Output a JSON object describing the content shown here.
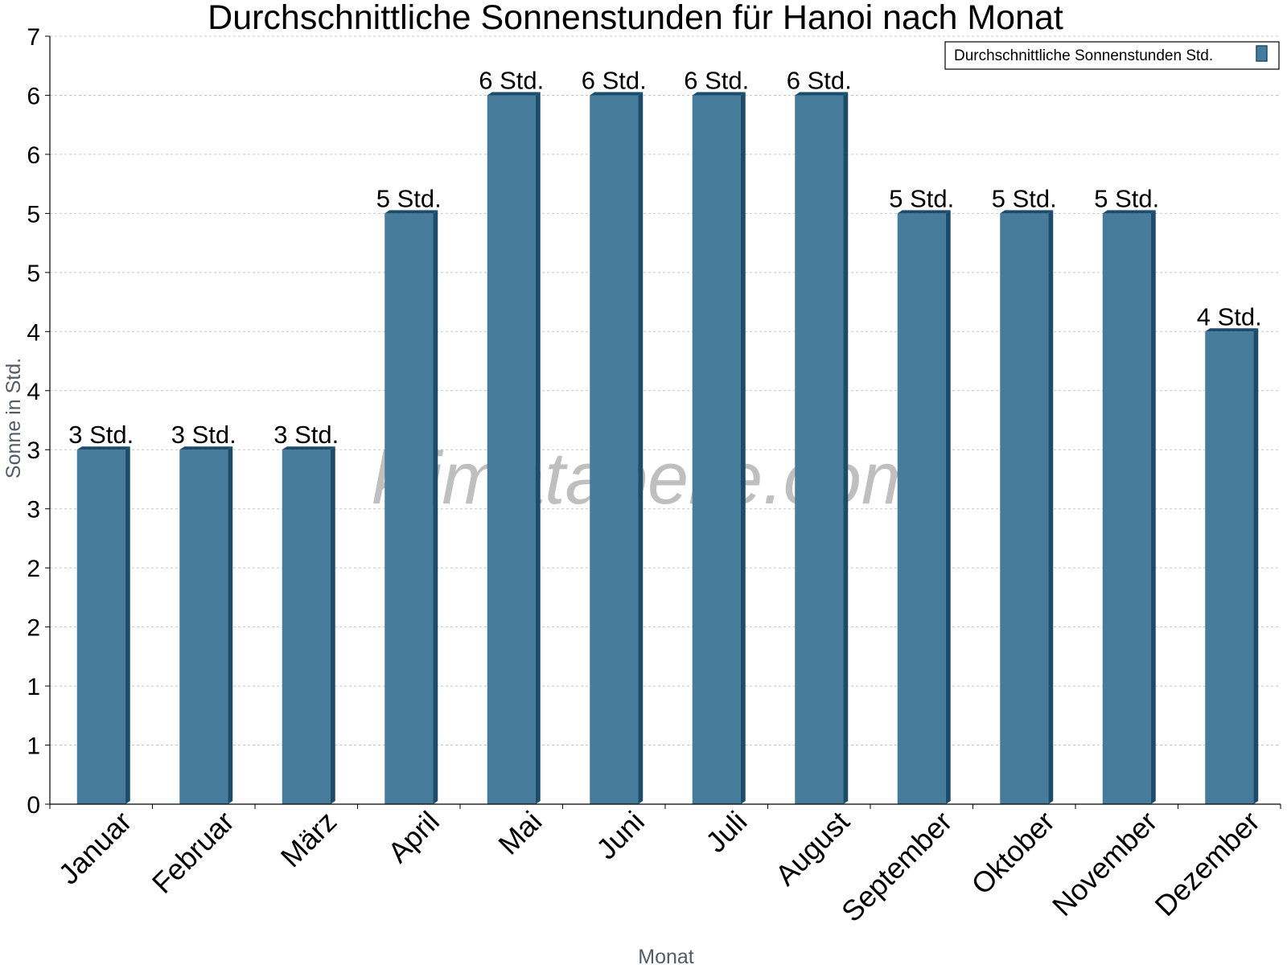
{
  "chart_data": {
    "type": "bar",
    "title": "Durchschnittliche Sonnenstunden für Hanoi nach Monat",
    "xlabel": "Monat",
    "ylabel": "Sonne in Std.",
    "categories": [
      "Januar",
      "Februar",
      "März",
      "April",
      "Mai",
      "Juni",
      "Juli",
      "August",
      "September",
      "Oktober",
      "November",
      "Dezember"
    ],
    "series": [
      {
        "name": "Durchschnittliche Sonnenstunden Std.",
        "values": [
          3,
          3,
          3,
          5,
          6,
          6,
          6,
          6,
          5,
          5,
          5,
          4
        ],
        "labels": [
          "3 Std.",
          "3 Std.",
          "3 Std.",
          "5 Std.",
          "6 Std.",
          "6 Std.",
          "6 Std.",
          "6 Std.",
          "5 Std.",
          "5 Std.",
          "5 Std.",
          "4 Std."
        ]
      }
    ],
    "ylim": [
      0,
      6.5
    ],
    "y_tick_labels": [
      "0",
      "1",
      "1",
      "2",
      "2",
      "3",
      "3",
      "4",
      "4",
      "5",
      "5",
      "6",
      "6",
      "7"
    ],
    "grid": true,
    "legend": "top-right",
    "colors": {
      "bar": "#467b9c",
      "bar_side": "#1b4c6c"
    },
    "watermark": "klimatabelle.com"
  }
}
